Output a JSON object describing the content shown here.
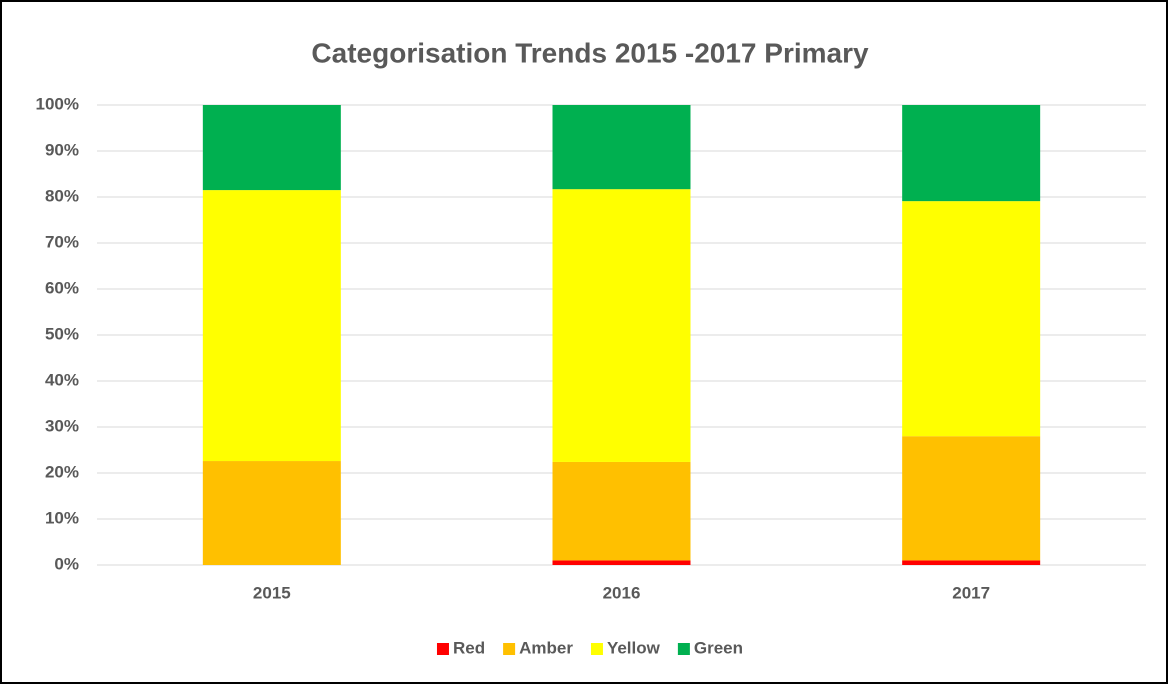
{
  "chart_data": {
    "type": "stacked_bar",
    "title": "Categorisation Trends 2015 -2017 Primary",
    "categories": [
      "2015",
      "2016",
      "2017"
    ],
    "series": [
      {
        "name": "Red",
        "color": "#ff0000",
        "values": [
          0,
          1.0,
          1.0
        ]
      },
      {
        "name": "Amber",
        "color": "#ffc000",
        "values": [
          22.6,
          21.4,
          27.0
        ]
      },
      {
        "name": "Yellow",
        "color": "#ffff00",
        "values": [
          58.9,
          59.3,
          51.1
        ]
      },
      {
        "name": "Green",
        "color": "#00b050",
        "values": [
          18.5,
          18.3,
          20.9
        ]
      }
    ],
    "ylim": [
      0,
      100
    ],
    "yticks": [
      {
        "value": 0,
        "label": "0%"
      },
      {
        "value": 10,
        "label": "10%"
      },
      {
        "value": 20,
        "label": "20%"
      },
      {
        "value": 30,
        "label": "30%"
      },
      {
        "value": 40,
        "label": "40%"
      },
      {
        "value": 50,
        "label": "50%"
      },
      {
        "value": 60,
        "label": "60%"
      },
      {
        "value": 70,
        "label": "70%"
      },
      {
        "value": 80,
        "label": "80%"
      },
      {
        "value": 90,
        "label": "90%"
      },
      {
        "value": 100,
        "label": "100%"
      }
    ],
    "grid": true,
    "legend": "bottom"
  }
}
